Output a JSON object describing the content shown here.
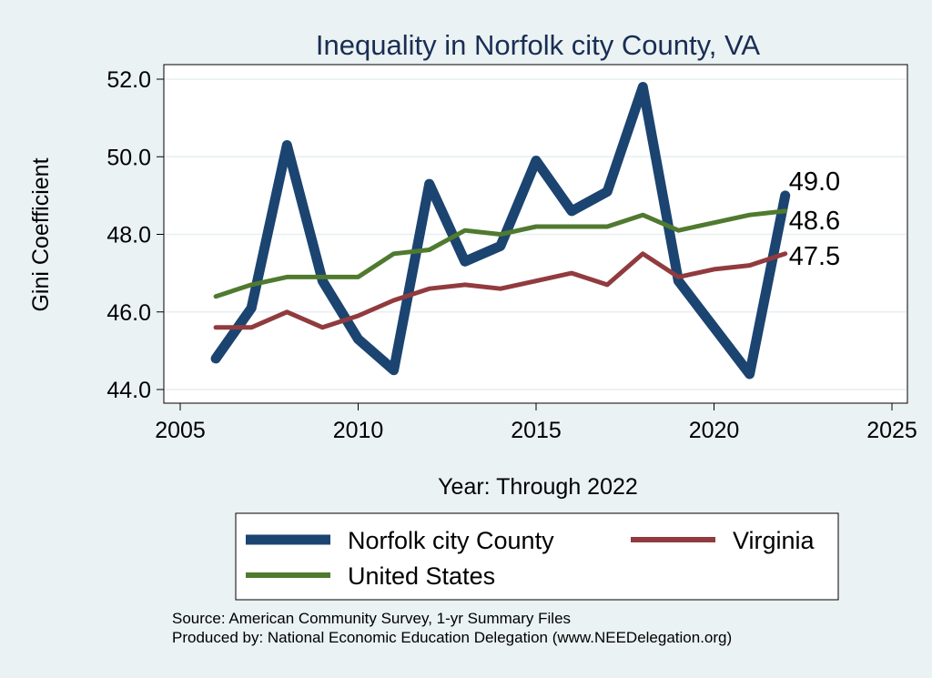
{
  "chart_data": {
    "type": "line",
    "title": "Inequality in Norfolk city County, VA",
    "xlabel": "Year: Through 2022",
    "ylabel": "Gini Coefficient",
    "xlim": [
      2005,
      2025
    ],
    "ylim": [
      44.0,
      52.0
    ],
    "xticks": [
      "2005",
      "2010",
      "2015",
      "2020",
      "2025"
    ],
    "yticks": [
      "44.0",
      "46.0",
      "48.0",
      "50.0",
      "52.0"
    ],
    "grid": true,
    "legend_position": "bottom",
    "x": [
      2006,
      2007,
      2008,
      2009,
      2010,
      2011,
      2012,
      2013,
      2014,
      2015,
      2016,
      2017,
      2018,
      2019,
      2020,
      2021,
      2022
    ],
    "series": [
      {
        "name": "Norfolk city County",
        "color": "#1b4470",
        "values": [
          44.8,
          46.1,
          50.3,
          46.8,
          45.3,
          44.5,
          49.3,
          47.3,
          47.7,
          49.9,
          48.6,
          49.1,
          51.8,
          46.8,
          45.6,
          44.4,
          49.0
        ],
        "end_label": "49.0"
      },
      {
        "name": "Virginia",
        "color": "#913b3e",
        "values": [
          45.6,
          45.6,
          46.0,
          45.6,
          45.9,
          46.3,
          46.6,
          46.7,
          46.6,
          46.8,
          47.0,
          46.7,
          47.5,
          46.9,
          47.1,
          47.2,
          47.5
        ],
        "end_label": "47.5"
      },
      {
        "name": "United States",
        "color": "#4f7a2f",
        "values": [
          46.4,
          46.7,
          46.9,
          46.9,
          46.9,
          47.5,
          47.6,
          48.1,
          48.0,
          48.2,
          48.2,
          48.2,
          48.5,
          48.1,
          48.3,
          48.5,
          48.6
        ],
        "end_label": "48.6"
      }
    ]
  },
  "legend": {
    "items": [
      "Norfolk city County",
      "Virginia",
      "United States"
    ]
  },
  "footer": {
    "source": "Source: American Community Survey, 1-yr Summary Files",
    "producer": "Produced by: National Economic Education Delegation (www.NEEDelegation.org)"
  }
}
